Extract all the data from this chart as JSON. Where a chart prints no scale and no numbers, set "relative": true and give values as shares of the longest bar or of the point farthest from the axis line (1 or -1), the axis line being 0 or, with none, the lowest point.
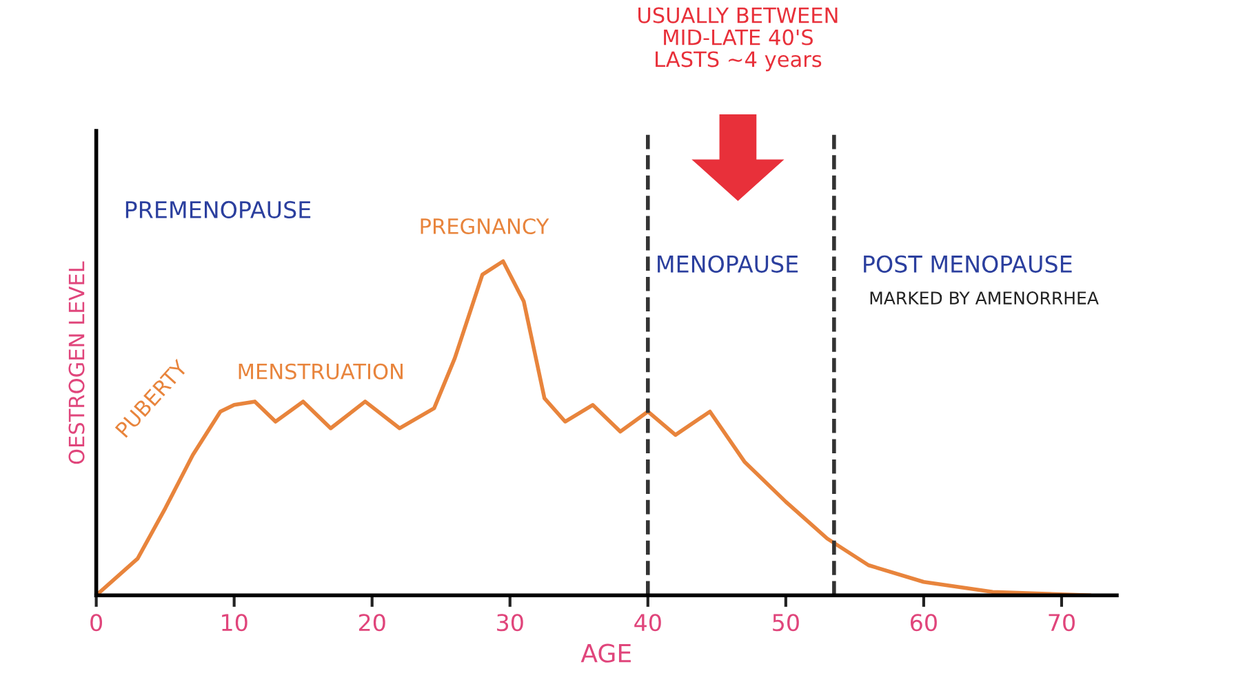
{
  "chart_data": {
    "type": "line",
    "relative": true,
    "xlabel": "AGE",
    "ylabel": "OESTROGEN LEVEL",
    "x": [
      0,
      3,
      5,
      7,
      9,
      10,
      11.5,
      13,
      15,
      17,
      19.5,
      22,
      24.5,
      26,
      28,
      29.5,
      31,
      32.5,
      34,
      36,
      38,
      40,
      42,
      44.5,
      47,
      50,
      53,
      56,
      60,
      65,
      72
    ],
    "series": [
      {
        "color": "#e8843c",
        "values": [
          0,
          0.11,
          0.26,
          0.42,
          0.55,
          0.57,
          0.58,
          0.52,
          0.58,
          0.5,
          0.58,
          0.5,
          0.56,
          0.71,
          0.96,
          1,
          0.88,
          0.59,
          0.52,
          0.57,
          0.49,
          0.55,
          0.48,
          0.55,
          0.4,
          0.28,
          0.17,
          0.09,
          0.04,
          0.01,
          0
        ]
      }
    ],
    "xlim": [
      0,
      74
    ],
    "xticks": [
      0,
      10,
      20,
      30,
      40,
      50,
      60,
      70
    ],
    "ref_lines": [
      {
        "axis": "x",
        "value": 40,
        "color": "#333333",
        "line_style": "dashed"
      },
      {
        "axis": "x",
        "value": 53.5,
        "color": "#333333",
        "line_style": "dashed"
      }
    ],
    "annotations": [
      "PREMENOPAUSE",
      "PUBERTY",
      "MENSTRUATION",
      {
        "text": "PREGNANCY",
        "x": 29.5,
        "y": 1
      },
      "MENOPAUSE",
      "POST MENOPAUSE",
      "MARKED BY AMENORRHEA",
      "USUALLY BETWEEN\nMID-LATE 40'S\nLASTS ~4 years"
    ],
    "grid": false,
    "marker": "none",
    "line_style": "solid"
  }
}
